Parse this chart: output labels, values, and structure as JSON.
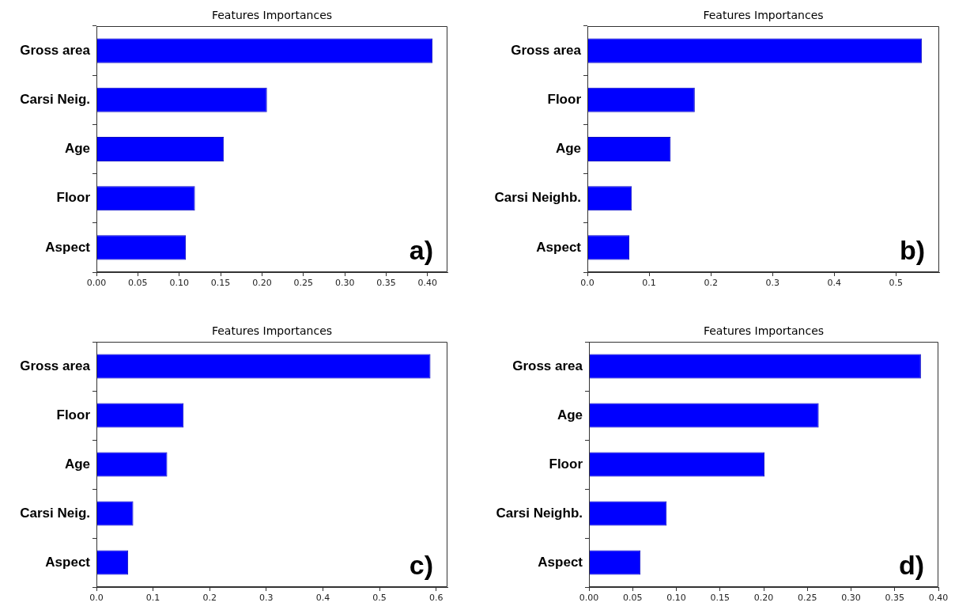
{
  "chart_data": [
    {
      "type": "bar",
      "orientation": "horizontal",
      "title": "Features Importances",
      "categories": [
        "Gross area",
        "Carsi Neig.",
        "Age",
        "Floor",
        "Aspect"
      ],
      "values": [
        0.406,
        0.206,
        0.154,
        0.119,
        0.108
      ],
      "color": "#0000ff",
      "xlim": [
        0,
        0.424
      ],
      "xticks": [
        {
          "value": 0,
          "label": "0.00"
        },
        0.05,
        {
          "value": 0.1,
          "label": "0.10"
        },
        0.15,
        {
          "value": 0.2,
          "label": "0.20"
        },
        0.25,
        {
          "value": 0.3,
          "label": "0.30"
        },
        0.35,
        {
          "value": 0.4,
          "label": "0.40"
        }
      ],
      "annotations": [
        "a)"
      ],
      "grid": false
    },
    {
      "type": "bar",
      "orientation": "horizontal",
      "title": "Features Importances",
      "categories": [
        "Gross area",
        "Floor",
        "Age",
        "Carsi Neighb.",
        "Aspect"
      ],
      "values": [
        0.542,
        0.174,
        0.135,
        0.072,
        0.068
      ],
      "color": "#0000ff",
      "xlim": [
        0,
        0.57
      ],
      "xticks": [
        {
          "value": 0,
          "label": "0.0"
        },
        0.1,
        0.2,
        0.3,
        0.4,
        0.5
      ],
      "annotations": [
        "b)"
      ],
      "grid": false
    },
    {
      "type": "bar",
      "orientation": "horizontal",
      "title": "Features Importances",
      "categories": [
        "Gross area",
        "Floor",
        "Age",
        "Carsi Neig.",
        "Aspect"
      ],
      "values": [
        0.59,
        0.154,
        0.125,
        0.065,
        0.056
      ],
      "color": "#0000ff",
      "xlim": [
        0,
        0.62
      ],
      "xticks": [
        {
          "value": 0,
          "label": "0.0"
        },
        0.1,
        0.2,
        0.3,
        0.4,
        0.5,
        0.6
      ],
      "annotations": [
        "c)"
      ],
      "grid": false
    },
    {
      "type": "bar",
      "orientation": "horizontal",
      "title": "Features Importances",
      "categories": [
        "Gross area",
        "Age",
        "Floor",
        "Carsi Neighb.",
        "Aspect"
      ],
      "values": [
        0.38,
        0.263,
        0.201,
        0.089,
        0.059
      ],
      "color": "#0000ff",
      "xlim": [
        0,
        0.4
      ],
      "xticks": [
        {
          "value": 0,
          "label": "0.00"
        },
        0.05,
        {
          "value": 0.1,
          "label": "0.10"
        },
        0.15,
        {
          "value": 0.2,
          "label": "0.20"
        },
        0.25,
        {
          "value": 0.3,
          "label": "0.30"
        },
        0.35,
        {
          "value": 0.4,
          "label": "0.40"
        }
      ],
      "annotations": [
        "d)"
      ],
      "grid": false
    }
  ]
}
